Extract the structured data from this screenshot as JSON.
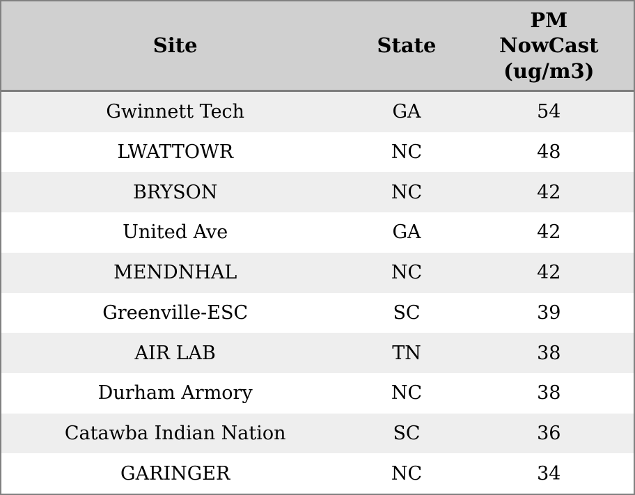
{
  "chart_data": {
    "type": "table",
    "title": "",
    "columns": [
      "Site",
      "State",
      "PM NowCast (ug/m3)"
    ],
    "rows": [
      [
        "Gwinnett Tech",
        "GA",
        54
      ],
      [
        "LWATTOWR",
        "NC",
        48
      ],
      [
        "BRYSON",
        "NC",
        42
      ],
      [
        "United Ave",
        "GA",
        42
      ],
      [
        "MENDNHAL",
        "NC",
        42
      ],
      [
        "Greenville-ESC",
        "SC",
        39
      ],
      [
        "AIR LAB",
        "TN",
        38
      ],
      [
        "Durham Armory",
        "NC",
        38
      ],
      [
        "Catawba Indian Nation",
        "SC",
        36
      ],
      [
        "GARINGER",
        "NC",
        34
      ]
    ],
    "layout": {
      "header_position": "top",
      "zebra_striping": true,
      "column_alignment": [
        "center",
        "center",
        "center"
      ]
    }
  },
  "colors": {
    "outer_border": "#808080",
    "header_bg": "#d0d0d0",
    "header_rule": "#7d7d7d",
    "row_alt_bg": "#eeeeee",
    "row_bg": "#ffffff",
    "text": "#000000"
  }
}
